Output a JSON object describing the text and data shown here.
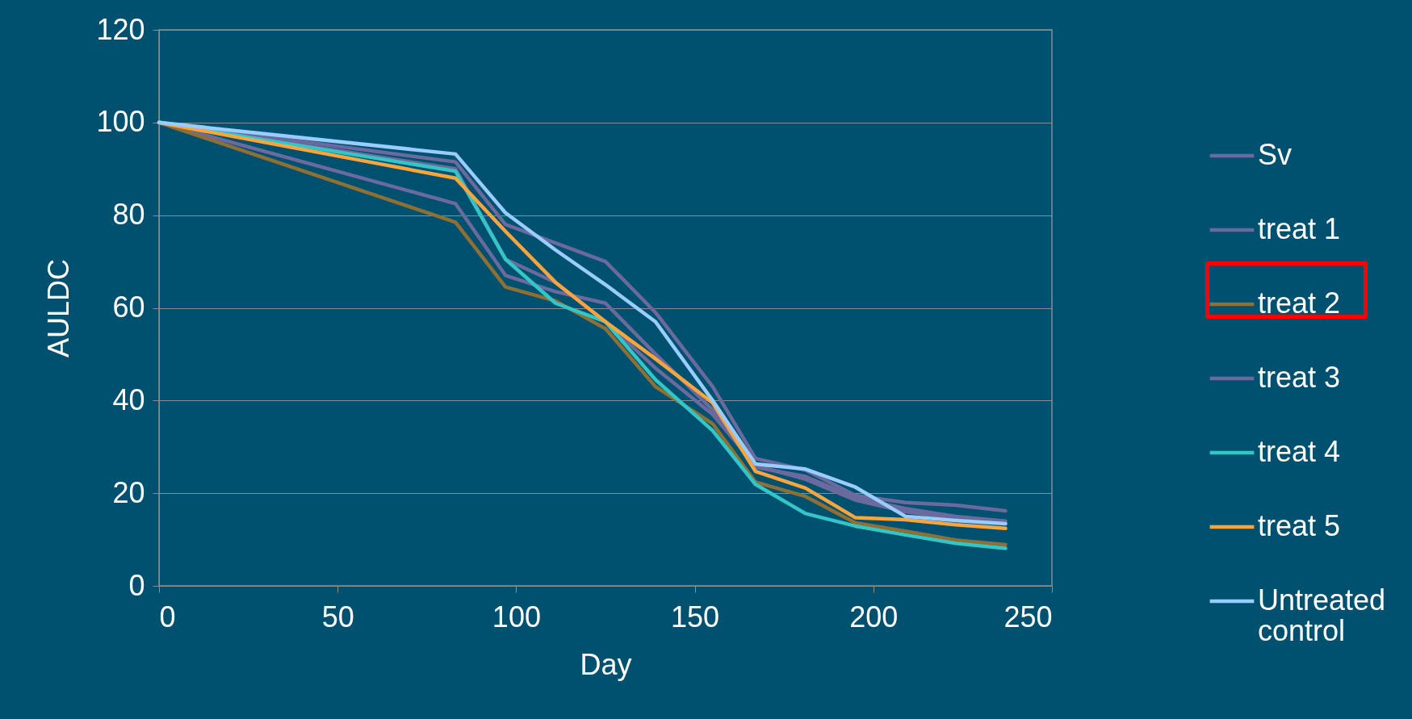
{
  "chart_data": {
    "type": "line",
    "xlabel": "Day",
    "ylabel": "AULDC",
    "x": [
      0,
      83,
      97,
      111,
      125,
      139,
      155,
      167,
      181,
      195,
      209,
      223,
      237
    ],
    "xlim": [
      0,
      250
    ],
    "xticks": [
      0,
      50,
      100,
      150,
      200,
      250
    ],
    "ylim": [
      0,
      120
    ],
    "yticks": [
      0,
      20,
      40,
      60,
      80,
      100,
      120
    ],
    "grid": "y",
    "legend": "right",
    "series": [
      {
        "name": "Sv",
        "color": "#6b6a9e",
        "values": [
          100,
          91.5,
          78,
          74,
          70,
          59,
          43,
          27.5,
          25,
          19.5,
          18,
          17.4,
          16.2
        ]
      },
      {
        "name": "treat 1",
        "color": "#6b6a9e",
        "values": [
          100,
          82.5,
          67,
          63.5,
          61,
          50,
          38,
          25.6,
          23.6,
          19,
          16.7,
          15,
          14
        ]
      },
      {
        "name": "treat 2",
        "color": "#8e7034",
        "values": [
          100,
          78.5,
          64.5,
          61.5,
          55.5,
          43,
          35,
          22.4,
          19.3,
          13.6,
          11.8,
          9.9,
          8.9
        ]
      },
      {
        "name": "treat 3",
        "color": "#6b6a9e",
        "values": [
          100,
          90,
          70.5,
          65.5,
          57,
          47,
          37,
          26,
          23,
          18.5,
          16,
          14.5,
          13.5
        ]
      },
      {
        "name": "treat 4",
        "color": "#33c6c7",
        "values": [
          100,
          89.5,
          70.5,
          61,
          57,
          44.5,
          33.5,
          21.9,
          15.6,
          12.9,
          11,
          9.2,
          8.1
        ]
      },
      {
        "name": "treat 5",
        "color": "#f9a53e",
        "values": [
          100,
          88,
          76.5,
          65.5,
          57,
          49,
          39.5,
          24.7,
          21.1,
          14.7,
          14.3,
          13.2,
          12.4
        ]
      },
      {
        "name": "Untreated control",
        "color": "#99ccff",
        "values": [
          100,
          93.2,
          80.5,
          72.5,
          65,
          57,
          40,
          26.3,
          25.2,
          21.3,
          15,
          14.1,
          13.4
        ]
      }
    ]
  }
}
